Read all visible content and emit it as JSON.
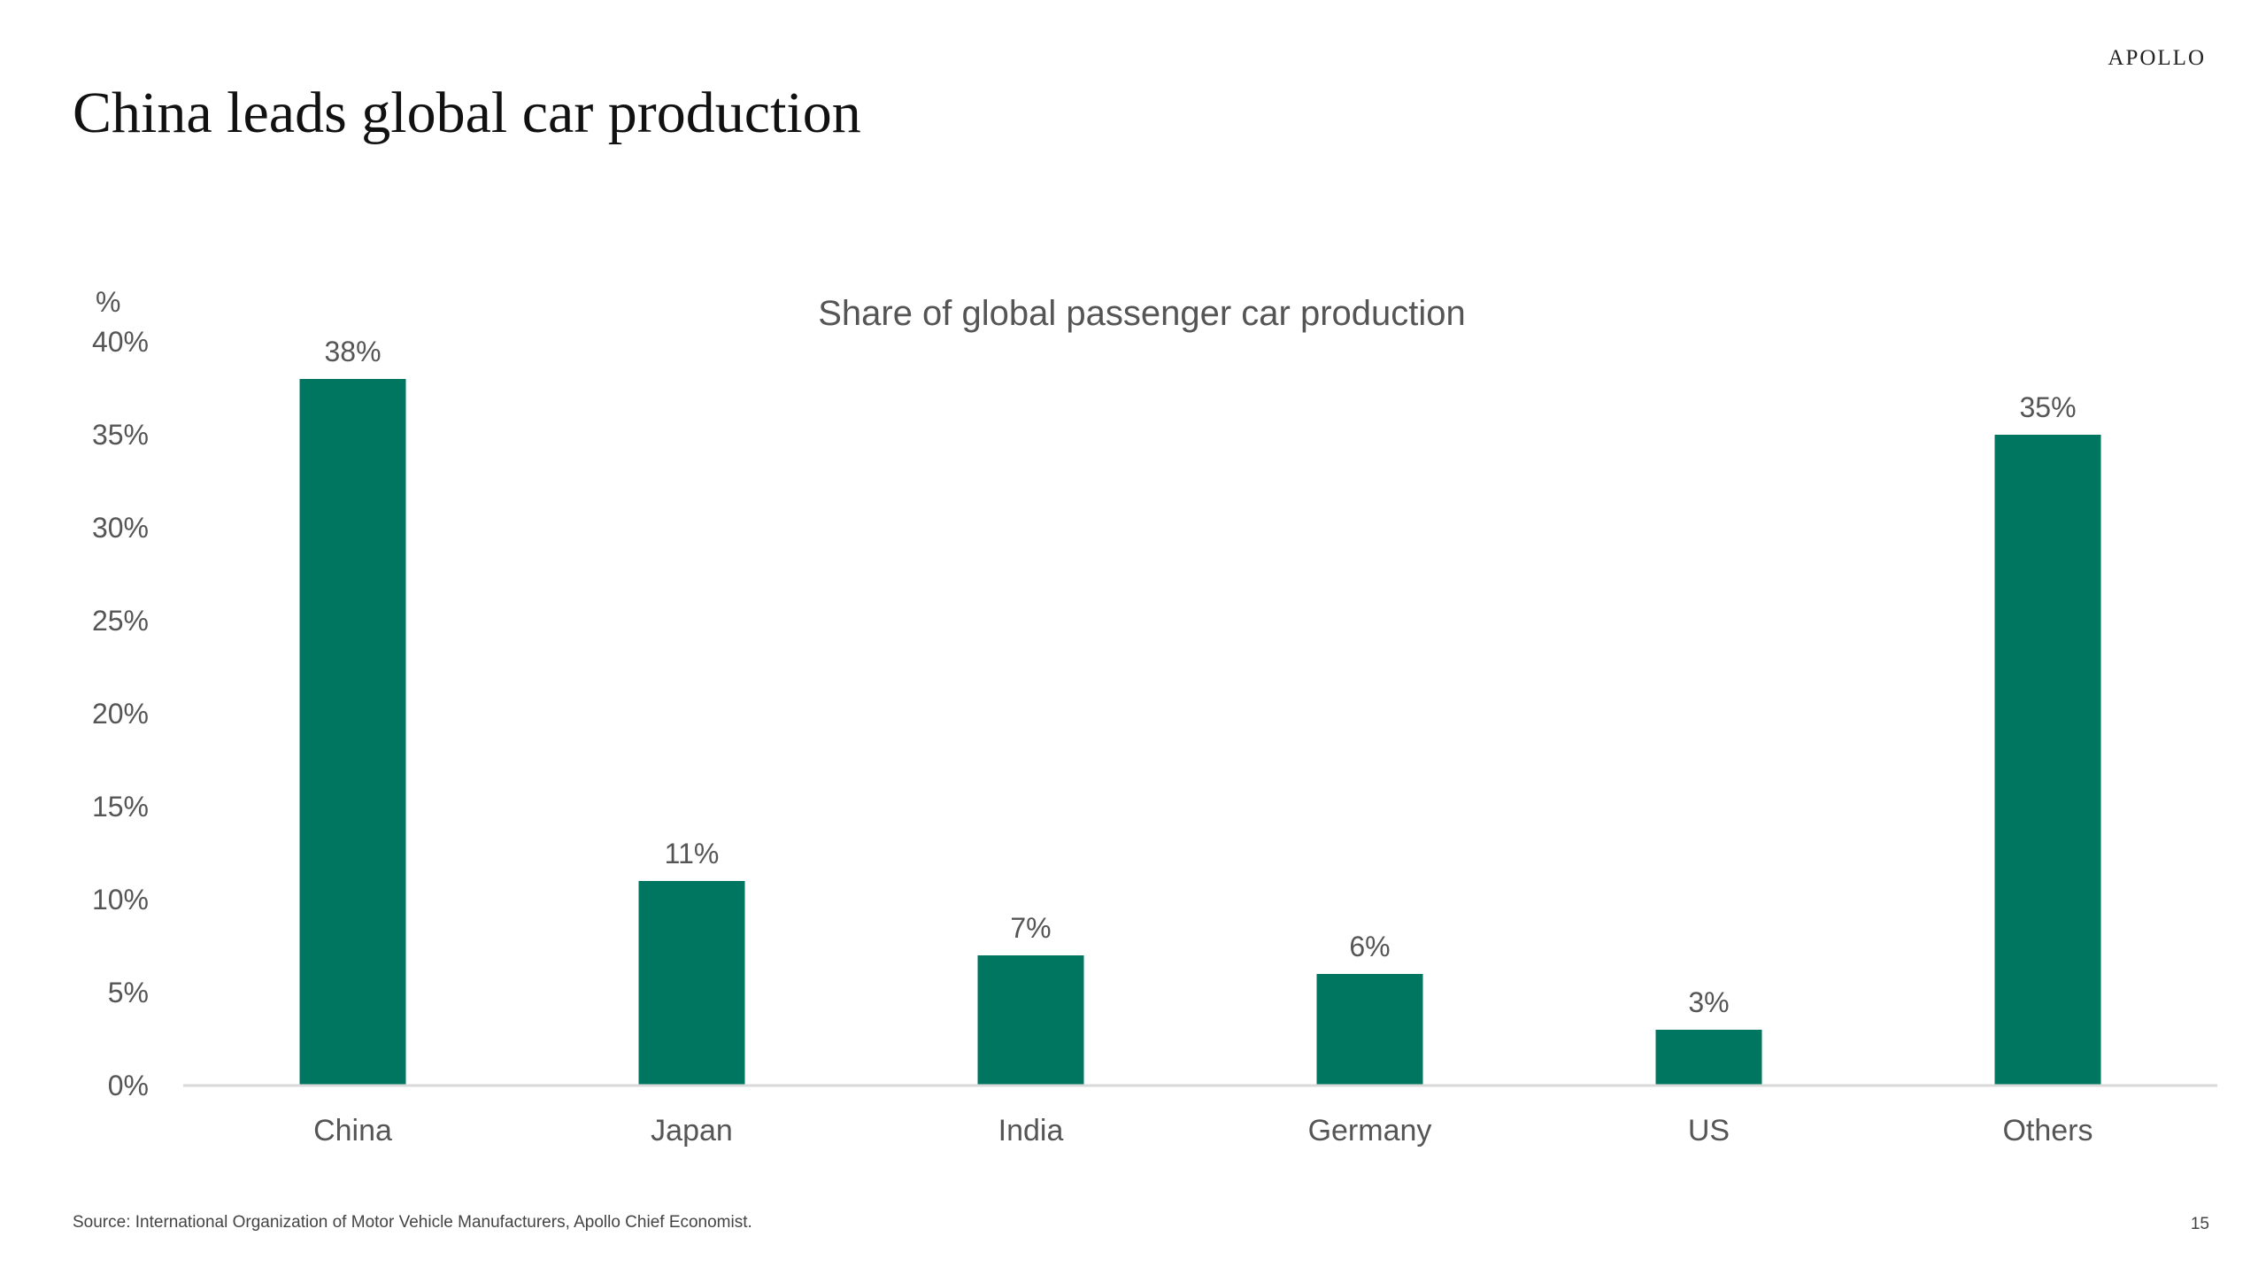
{
  "header": {
    "logo": "APOLLO",
    "title": "China leads global car production"
  },
  "chart_data": {
    "type": "bar",
    "title": "Share of global passenger car production",
    "ylabel": "%",
    "xlabel": "",
    "categories": [
      "China",
      "Japan",
      "India",
      "Germany",
      "US",
      "Others"
    ],
    "values": [
      38,
      11,
      7,
      6,
      3,
      35
    ],
    "value_labels": [
      "38%",
      "11%",
      "7%",
      "6%",
      "3%",
      "35%"
    ],
    "ylim": [
      0,
      40
    ],
    "yticks": [
      0,
      5,
      10,
      15,
      20,
      25,
      30,
      35,
      40
    ],
    "ytick_labels": [
      "0%",
      "5%",
      "10%",
      "15%",
      "20%",
      "25%",
      "30%",
      "35%",
      "40%"
    ],
    "bar_color": "#007660",
    "grid": false,
    "legend": "none"
  },
  "footer": {
    "source": "Source: International Organization of Motor Vehicle Manufacturers, Apollo Chief Economist.",
    "page_number": "15"
  }
}
